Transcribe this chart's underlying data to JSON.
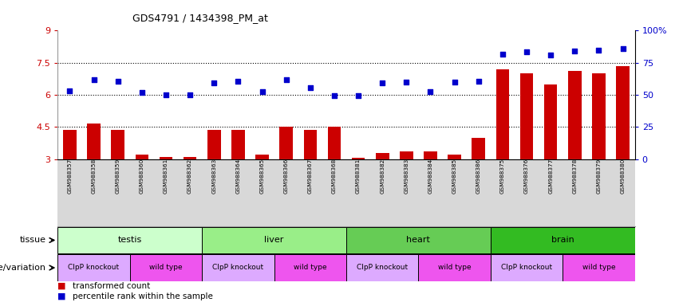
{
  "title": "GDS4791 / 1434398_PM_at",
  "samples": [
    "GSM988357",
    "GSM988358",
    "GSM988359",
    "GSM988360",
    "GSM988361",
    "GSM988362",
    "GSM988363",
    "GSM988364",
    "GSM988365",
    "GSM988366",
    "GSM988367",
    "GSM988368",
    "GSM988381",
    "GSM988382",
    "GSM988383",
    "GSM988384",
    "GSM988385",
    "GSM988386",
    "GSM988375",
    "GSM988376",
    "GSM988377",
    "GSM988378",
    "GSM988379",
    "GSM988380"
  ],
  "bar_values": [
    4.35,
    4.65,
    4.35,
    3.2,
    3.1,
    3.1,
    4.35,
    4.35,
    3.2,
    4.5,
    4.35,
    4.5,
    3.05,
    3.3,
    3.35,
    3.35,
    3.2,
    4.0,
    7.2,
    7.0,
    6.5,
    7.1,
    7.0,
    7.35
  ],
  "dot_values": [
    6.2,
    6.7,
    6.65,
    6.1,
    6.0,
    6.0,
    6.55,
    6.65,
    6.15,
    6.7,
    6.35,
    5.97,
    5.97,
    6.55,
    6.6,
    6.15,
    6.6,
    6.65,
    7.9,
    8.0,
    7.85,
    8.05,
    8.1,
    8.15
  ],
  "bar_color": "#cc0000",
  "dot_color": "#0000cc",
  "ymin": 3.0,
  "ymax": 9.0,
  "yticks_left": [
    3.0,
    4.5,
    6.0,
    7.5,
    9.0
  ],
  "ytick_labels_left": [
    "3",
    "4.5",
    "6",
    "7.5",
    "9"
  ],
  "yticks_right_pct": [
    0,
    25,
    50,
    75,
    100
  ],
  "ytick_labels_right": [
    "0",
    "25",
    "50",
    "75",
    "100%"
  ],
  "hlines": [
    4.5,
    6.0,
    7.5
  ],
  "tissue_groups": [
    {
      "label": "testis",
      "start": 0,
      "end": 6,
      "color": "#ccffcc"
    },
    {
      "label": "liver",
      "start": 6,
      "end": 12,
      "color": "#99ee88"
    },
    {
      "label": "heart",
      "start": 12,
      "end": 18,
      "color": "#66cc55"
    },
    {
      "label": "brain",
      "start": 18,
      "end": 24,
      "color": "#33bb22"
    }
  ],
  "genotype_groups": [
    {
      "label": "ClpP knockout",
      "start": 0,
      "end": 3,
      "color": "#ddaaff"
    },
    {
      "label": "wild type",
      "start": 3,
      "end": 6,
      "color": "#ee55ee"
    },
    {
      "label": "ClpP knockout",
      "start": 6,
      "end": 9,
      "color": "#ddaaff"
    },
    {
      "label": "wild type",
      "start": 9,
      "end": 12,
      "color": "#ee55ee"
    },
    {
      "label": "ClpP knockout",
      "start": 12,
      "end": 15,
      "color": "#ddaaff"
    },
    {
      "label": "wild type",
      "start": 15,
      "end": 18,
      "color": "#ee55ee"
    },
    {
      "label": "ClpP knockout",
      "start": 18,
      "end": 21,
      "color": "#ddaaff"
    },
    {
      "label": "wild type",
      "start": 21,
      "end": 24,
      "color": "#ee55ee"
    }
  ],
  "tissue_label": "tissue",
  "genotype_label": "genotype/variation",
  "legend_bar_label": "transformed count",
  "legend_dot_label": "percentile rank within the sample",
  "xtick_bg_color": "#d8d8d8",
  "plot_bg_color": "#ffffff"
}
